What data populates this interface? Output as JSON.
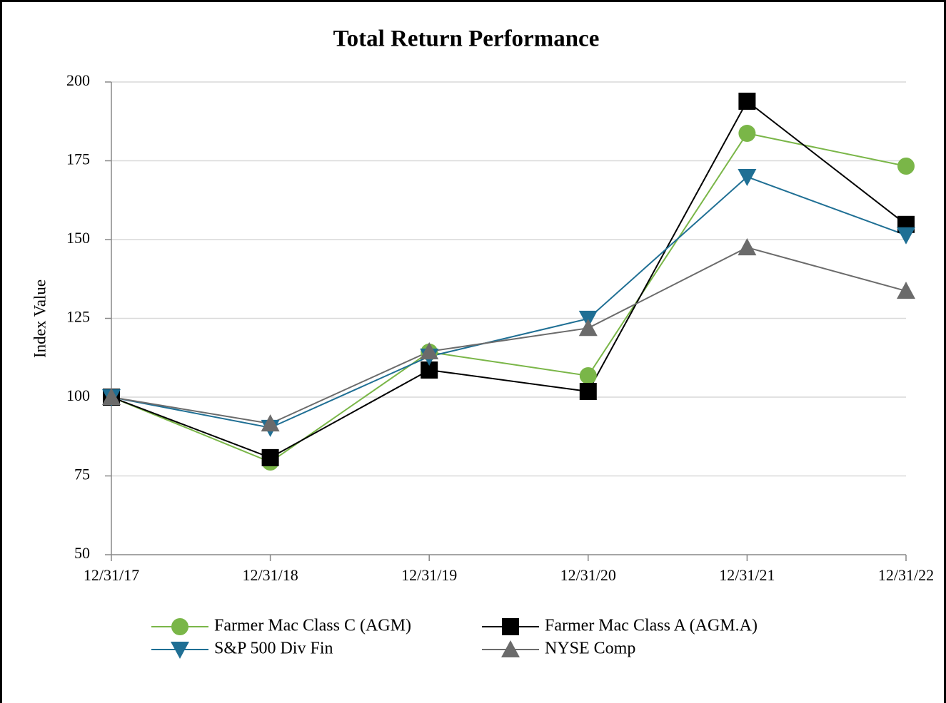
{
  "chart_data": {
    "type": "line",
    "title": "Total Return Performance",
    "y_label": "Index Value",
    "categories": [
      "12/31/17",
      "12/31/18",
      "12/31/19",
      "12/31/20",
      "12/31/21",
      "12/31/22"
    ],
    "series": [
      {
        "name": "Farmer Mac Class C (AGM)",
        "color": "#7ab648",
        "marker": "circle",
        "values": [
          100,
          79.4,
          114.3,
          106.8,
          183.7,
          173.3
        ]
      },
      {
        "name": "Farmer Mac Class A (AGM.A)",
        "color": "#000000",
        "marker": "square",
        "values": [
          100,
          80.8,
          108.6,
          101.8,
          193.9,
          154.8
        ]
      },
      {
        "name": "S&P 500 Div Fin",
        "color": "#1f6f94",
        "marker": "triangle-down",
        "values": [
          100,
          90.3,
          112.9,
          124.9,
          169.9,
          151.4
        ]
      },
      {
        "name": "NYSE Comp",
        "color": "#6b6b6b",
        "marker": "triangle-up",
        "values": [
          100,
          91.6,
          114.5,
          121.9,
          147.5,
          133.7
        ]
      }
    ],
    "ylim": [
      50,
      200
    ],
    "yticks": [
      50,
      75,
      100,
      125,
      150,
      175,
      200
    ],
    "grid": true,
    "legend": "bottom"
  }
}
